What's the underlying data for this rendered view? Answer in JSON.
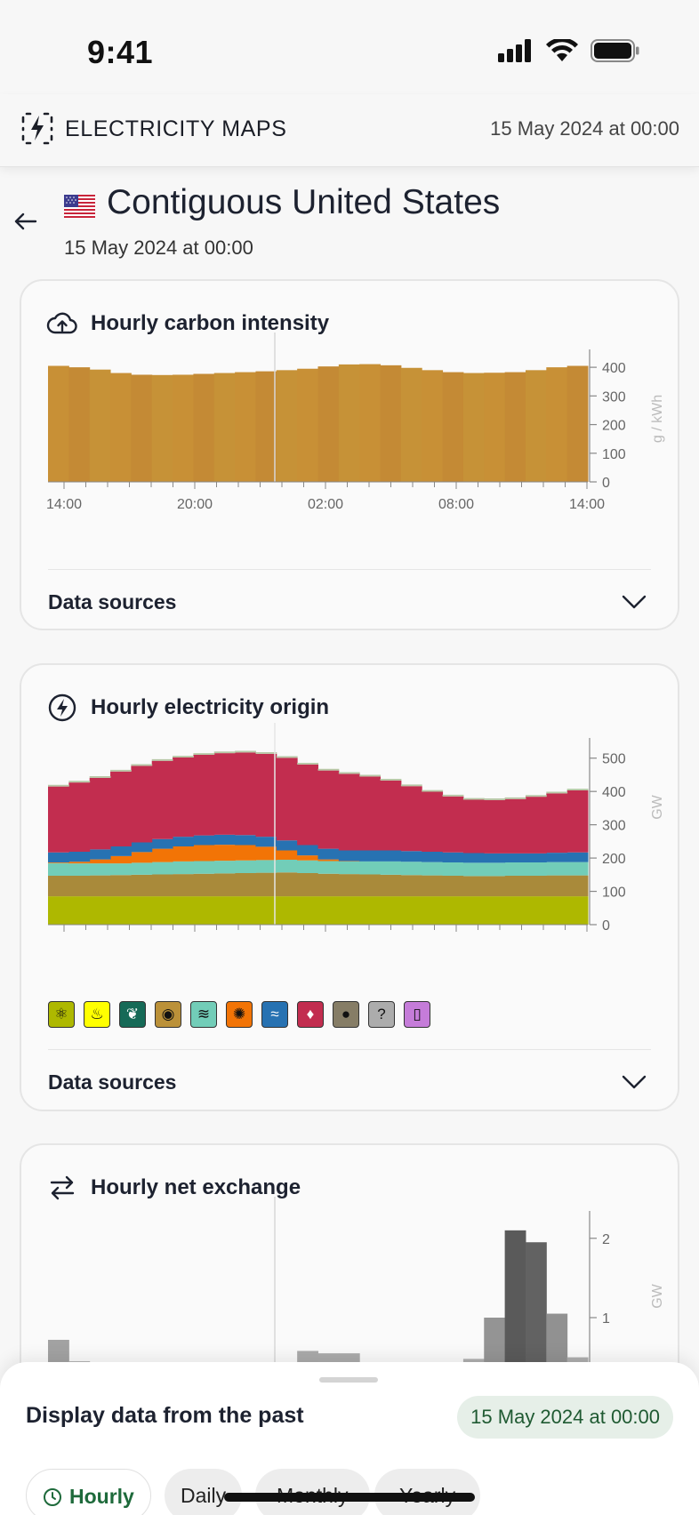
{
  "status": {
    "time": "9:41"
  },
  "header": {
    "app_name": "ELECTRICITY MAPS",
    "date": "15 May 2024 at 00:00"
  },
  "zone": {
    "name": "Contiguous United States",
    "date": "15 May 2024 at 00:00",
    "flag": "us-flag-icon"
  },
  "cards": {
    "carbon": {
      "title": "Hourly carbon intensity",
      "data_sources": "Data sources"
    },
    "origin": {
      "title": "Hourly electricity origin",
      "data_sources": "Data sources"
    },
    "exchange": {
      "title": "Hourly net exchange"
    }
  },
  "legend": [
    {
      "name": "nuclear",
      "color": "#aeb800",
      "glyph": "⚛"
    },
    {
      "name": "geothermal",
      "color": "#ffff00",
      "glyph": "♨"
    },
    {
      "name": "biomass",
      "color": "#166a57",
      "glyph": "❦"
    },
    {
      "name": "gas",
      "color": "#bb9139",
      "glyph": "◉"
    },
    {
      "name": "wind",
      "color": "#72cdb8",
      "glyph": "≋"
    },
    {
      "name": "solar",
      "color": "#f27406",
      "glyph": "✺"
    },
    {
      "name": "hydro",
      "color": "#2772b2",
      "glyph": "≈"
    },
    {
      "name": "coal",
      "color": "#c22d4f",
      "glyph": "♦"
    },
    {
      "name": "oil",
      "color": "#867d66",
      "glyph": "●"
    },
    {
      "name": "unknown",
      "color": "#acacac",
      "glyph": "?"
    },
    {
      "name": "battery storage",
      "color": "#c57cd9",
      "glyph": "▯"
    }
  ],
  "bottom_sheet": {
    "title": "Display data from the past",
    "date": "15 May 2024 at 00:00",
    "tabs": [
      "Hourly",
      "Daily",
      "Monthly",
      "Yearly"
    ]
  },
  "chart_data": [
    {
      "type": "bar",
      "name": "Hourly carbon intensity",
      "x_ticks": [
        "14:00",
        "20:00",
        "02:00",
        "08:00",
        "14:00"
      ],
      "ylabel": "g / kWh",
      "ylim": [
        0,
        450
      ],
      "y_ticks": [
        0,
        100,
        200,
        300,
        400
      ],
      "values": [
        405,
        400,
        392,
        380,
        374,
        373,
        374,
        377,
        380,
        383,
        386,
        390,
        395,
        403,
        410,
        411,
        407,
        398,
        390,
        383,
        380,
        381,
        383,
        390,
        400,
        405
      ],
      "color": "#c89036"
    },
    {
      "type": "area",
      "name": "Hourly electricity origin",
      "x_ticks": [
        "14:00",
        "20:00",
        "02:00",
        "08:00",
        "14:00"
      ],
      "ylabel": "GW",
      "ylim": [
        0,
        550
      ],
      "y_ticks": [
        0,
        100,
        200,
        300,
        400,
        500
      ],
      "series": [
        {
          "name": "nuclear",
          "color": "#aeb800",
          "values": [
            85,
            85,
            85,
            85,
            85,
            85,
            85,
            85,
            85,
            85,
            85,
            85,
            85,
            85,
            85,
            85,
            85,
            85,
            85,
            85,
            85,
            85,
            85,
            85,
            85,
            85
          ]
        },
        {
          "name": "gas",
          "color": "#a98a3a",
          "values": [
            62,
            62,
            63,
            64,
            65,
            66,
            67,
            68,
            69,
            70,
            71,
            72,
            70,
            68,
            67,
            66,
            65,
            64,
            63,
            62,
            61,
            61,
            62,
            62,
            63,
            63
          ]
        },
        {
          "name": "wind",
          "color": "#72cdb8",
          "values": [
            38,
            37,
            36,
            35,
            36,
            37,
            38,
            38,
            38,
            38,
            38,
            38,
            38,
            38,
            38,
            39,
            40,
            40,
            40,
            40,
            40,
            40,
            40,
            40,
            40,
            40
          ]
        },
        {
          "name": "solar",
          "color": "#f27406",
          "values": [
            2,
            5,
            12,
            22,
            32,
            40,
            45,
            48,
            48,
            46,
            40,
            28,
            15,
            5,
            1,
            0,
            0,
            0,
            0,
            0,
            0,
            0,
            0,
            0,
            0,
            0
          ]
        },
        {
          "name": "hydro",
          "color": "#2772b2",
          "values": [
            30,
            30,
            30,
            29,
            29,
            29,
            29,
            29,
            30,
            30,
            30,
            30,
            31,
            32,
            32,
            33,
            33,
            32,
            31,
            30,
            29,
            28,
            27,
            27,
            28,
            29
          ]
        },
        {
          "name": "coal",
          "color": "#c22d4f",
          "values": [
            198,
            208,
            215,
            225,
            230,
            235,
            238,
            242,
            245,
            248,
            249,
            248,
            242,
            235,
            230,
            222,
            210,
            195,
            180,
            168,
            160,
            160,
            163,
            170,
            178,
            186
          ]
        },
        {
          "name": "oil",
          "color": "#b7c7a6",
          "values": [
            5,
            5,
            5,
            5,
            5,
            5,
            5,
            5,
            5,
            5,
            5,
            5,
            5,
            5,
            5,
            5,
            5,
            5,
            5,
            5,
            5,
            5,
            5,
            5,
            5,
            5
          ]
        }
      ]
    },
    {
      "type": "bar",
      "name": "Hourly net exchange",
      "ylabel": "GW",
      "ylim": [
        -0.3,
        2.3
      ],
      "y_ticks": [
        0,
        1,
        2
      ],
      "values": [
        0.72,
        0.45,
        -0.05,
        0.22,
        -0.2,
        -0.2,
        -0.2,
        -0.25,
        -0.2,
        -0.2,
        -0.15,
        0.3,
        0.58,
        0.55,
        0.55,
        -0.15,
        -0.15,
        -0.15,
        -0.15,
        0.05,
        0.48,
        1.0,
        2.1,
        1.95,
        1.05,
        0.5
      ]
    }
  ]
}
